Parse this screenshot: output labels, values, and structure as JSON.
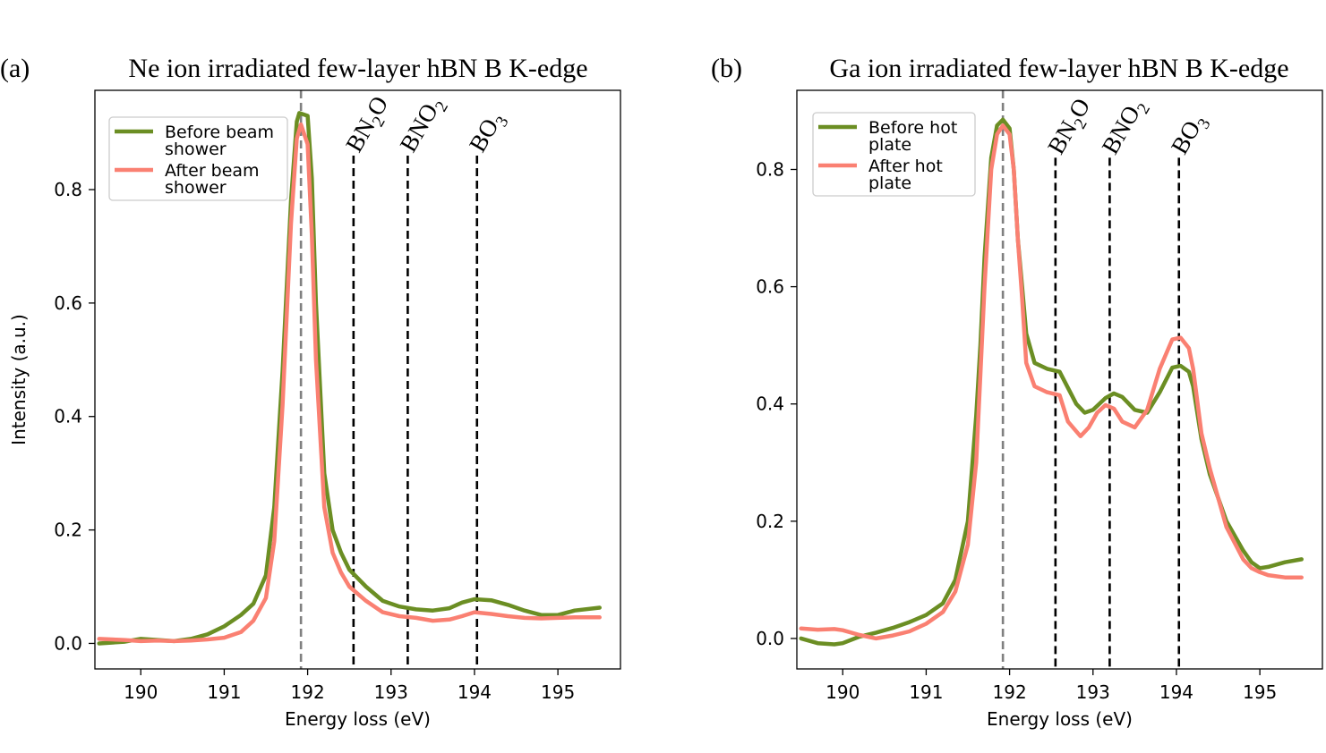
{
  "panels": [
    {
      "label": "(a)",
      "title": "Ne ion irradiated few-layer hBN B K-edge",
      "xlabel": "Energy loss (eV)",
      "ylabel": "Intensity (a.u.)",
      "xlim": [
        189.45,
        195.75
      ],
      "ylim": [
        -0.045,
        0.975
      ],
      "xticks": [
        190,
        191,
        192,
        193,
        194,
        195
      ],
      "yticks": [
        0.0,
        0.2,
        0.4,
        0.6,
        0.8
      ],
      "gray_line_x": 191.92,
      "markers": [
        {
          "x": 192.55,
          "label": "BN2O",
          "base": "BN",
          "sub": "2",
          "tail": "O"
        },
        {
          "x": 193.2,
          "label": "BNO2",
          "base": "BNO",
          "sub": "2",
          "tail": ""
        },
        {
          "x": 194.03,
          "label": "BO3",
          "base": "BO",
          "sub": "3",
          "tail": ""
        }
      ],
      "marker_top": 0.86,
      "legend": [
        "Before beam\nshower",
        "After beam\nshower"
      ],
      "series": [
        {
          "name": "Before beam shower",
          "color": "#6b8e23",
          "x": [
            189.5,
            189.8,
            190.0,
            190.2,
            190.4,
            190.6,
            190.8,
            191.0,
            191.2,
            191.35,
            191.5,
            191.6,
            191.7,
            191.8,
            191.87,
            191.9,
            192.0,
            192.05,
            192.1,
            192.2,
            192.3,
            192.4,
            192.5,
            192.7,
            192.9,
            193.1,
            193.3,
            193.5,
            193.7,
            193.85,
            194.0,
            194.2,
            194.4,
            194.6,
            194.8,
            195.0,
            195.2,
            195.5
          ],
          "y": [
            0.0,
            0.003,
            0.008,
            0.006,
            0.004,
            0.008,
            0.016,
            0.03,
            0.05,
            0.07,
            0.12,
            0.24,
            0.48,
            0.78,
            0.92,
            0.935,
            0.93,
            0.82,
            0.6,
            0.3,
            0.2,
            0.16,
            0.13,
            0.1,
            0.075,
            0.065,
            0.06,
            0.058,
            0.062,
            0.072,
            0.078,
            0.076,
            0.068,
            0.058,
            0.05,
            0.05,
            0.058,
            0.063
          ]
        },
        {
          "name": "After beam shower",
          "color": "#fa8072",
          "x": [
            189.5,
            189.8,
            190.0,
            190.2,
            190.4,
            190.6,
            190.8,
            191.0,
            191.2,
            191.35,
            191.5,
            191.6,
            191.7,
            191.8,
            191.87,
            191.92,
            192.0,
            192.05,
            192.1,
            192.2,
            192.3,
            192.4,
            192.5,
            192.7,
            192.9,
            193.1,
            193.3,
            193.5,
            193.7,
            193.85,
            194.0,
            194.2,
            194.4,
            194.6,
            194.8,
            195.0,
            195.2,
            195.5
          ],
          "y": [
            0.008,
            0.006,
            0.004,
            0.005,
            0.004,
            0.005,
            0.007,
            0.01,
            0.02,
            0.04,
            0.08,
            0.18,
            0.42,
            0.74,
            0.89,
            0.915,
            0.88,
            0.72,
            0.5,
            0.24,
            0.16,
            0.125,
            0.1,
            0.075,
            0.055,
            0.048,
            0.045,
            0.04,
            0.042,
            0.048,
            0.055,
            0.052,
            0.048,
            0.045,
            0.044,
            0.045,
            0.046,
            0.046
          ]
        }
      ]
    },
    {
      "label": "(b)",
      "title": "Ga ion irradiated few-layer hBN B K-edge",
      "xlabel": "Energy loss (eV)",
      "ylabel": "",
      "xlim": [
        189.45,
        195.75
      ],
      "ylim": [
        -0.052,
        0.935
      ],
      "xticks": [
        190,
        191,
        192,
        193,
        194,
        195
      ],
      "yticks": [
        0.0,
        0.2,
        0.4,
        0.6,
        0.8
      ],
      "gray_line_x": 191.92,
      "markers": [
        {
          "x": 192.55,
          "label": "BN2O",
          "base": "BN",
          "sub": "2",
          "tail": "O"
        },
        {
          "x": 193.2,
          "label": "BNO2",
          "base": "BNO",
          "sub": "2",
          "tail": ""
        },
        {
          "x": 194.03,
          "label": "BO3",
          "base": "BO",
          "sub": "3",
          "tail": ""
        }
      ],
      "marker_top": 0.82,
      "legend": [
        "Before hot\nplate",
        "After hot\nplate"
      ],
      "series": [
        {
          "name": "Before hot plate",
          "color": "#6b8e23",
          "x": [
            189.5,
            189.7,
            189.9,
            190.0,
            190.2,
            190.4,
            190.6,
            190.8,
            191.0,
            191.2,
            191.35,
            191.5,
            191.6,
            191.65,
            191.7,
            191.78,
            191.85,
            191.92,
            192.0,
            192.05,
            192.1,
            192.15,
            192.2,
            192.3,
            192.45,
            192.6,
            192.8,
            192.9,
            193.0,
            193.15,
            193.25,
            193.35,
            193.5,
            193.65,
            193.8,
            193.95,
            194.05,
            194.15,
            194.2,
            194.3,
            194.4,
            194.6,
            194.8,
            194.9,
            195.0,
            195.1,
            195.3,
            195.5
          ],
          "y": [
            0.0,
            -0.008,
            -0.01,
            -0.008,
            0.003,
            0.01,
            0.018,
            0.028,
            0.04,
            0.06,
            0.1,
            0.2,
            0.38,
            0.5,
            0.65,
            0.82,
            0.875,
            0.885,
            0.87,
            0.8,
            0.68,
            0.6,
            0.52,
            0.47,
            0.46,
            0.455,
            0.4,
            0.385,
            0.39,
            0.41,
            0.418,
            0.412,
            0.39,
            0.385,
            0.42,
            0.462,
            0.465,
            0.455,
            0.43,
            0.34,
            0.28,
            0.2,
            0.15,
            0.13,
            0.12,
            0.122,
            0.13,
            0.135
          ]
        },
        {
          "name": "After hot plate",
          "color": "#fa8072",
          "x": [
            189.5,
            189.7,
            189.9,
            190.0,
            190.2,
            190.4,
            190.6,
            190.8,
            191.0,
            191.2,
            191.35,
            191.5,
            191.6,
            191.65,
            191.7,
            191.78,
            191.85,
            191.92,
            192.0,
            192.05,
            192.1,
            192.15,
            192.2,
            192.3,
            192.45,
            192.6,
            192.7,
            192.85,
            192.95,
            193.05,
            193.15,
            193.25,
            193.35,
            193.5,
            193.65,
            193.8,
            193.95,
            194.05,
            194.15,
            194.2,
            194.3,
            194.4,
            194.6,
            194.8,
            194.9,
            195.0,
            195.1,
            195.3,
            195.5
          ],
          "y": [
            0.017,
            0.015,
            0.016,
            0.014,
            0.006,
            0.0,
            0.005,
            0.012,
            0.025,
            0.045,
            0.08,
            0.16,
            0.3,
            0.45,
            0.6,
            0.8,
            0.86,
            0.875,
            0.86,
            0.8,
            0.68,
            0.58,
            0.47,
            0.43,
            0.42,
            0.415,
            0.37,
            0.345,
            0.36,
            0.385,
            0.398,
            0.392,
            0.37,
            0.36,
            0.39,
            0.46,
            0.51,
            0.513,
            0.495,
            0.46,
            0.35,
            0.29,
            0.19,
            0.135,
            0.12,
            0.113,
            0.108,
            0.104,
            0.104
          ]
        }
      ]
    }
  ],
  "chart_data": [
    {
      "type": "line",
      "title": "Ne ion irradiated few-layer hBN B K-edge",
      "xlabel": "Energy loss (eV)",
      "ylabel": "Intensity (a.u.)",
      "xlim": [
        189.45,
        195.75
      ],
      "ylim": [
        -0.045,
        0.975
      ],
      "annotations": [
        "BN2O",
        "BNO2",
        "BO3"
      ],
      "series": [
        {
          "name": "Before beam shower",
          "peak_x": 191.9,
          "peak_y": 0.935
        },
        {
          "name": "After beam shower",
          "peak_x": 191.92,
          "peak_y": 0.915
        }
      ]
    },
    {
      "type": "line",
      "title": "Ga ion irradiated few-layer hBN B K-edge",
      "xlabel": "Energy loss (eV)",
      "ylabel": "",
      "xlim": [
        189.45,
        195.75
      ],
      "ylim": [
        -0.052,
        0.935
      ],
      "annotations": [
        "BN2O",
        "BNO2",
        "BO3"
      ],
      "series": [
        {
          "name": "Before hot plate",
          "peak_x": 191.92,
          "peak_y": 0.885
        },
        {
          "name": "After hot plate",
          "peak_x": 191.92,
          "peak_y": 0.875
        }
      ]
    }
  ]
}
